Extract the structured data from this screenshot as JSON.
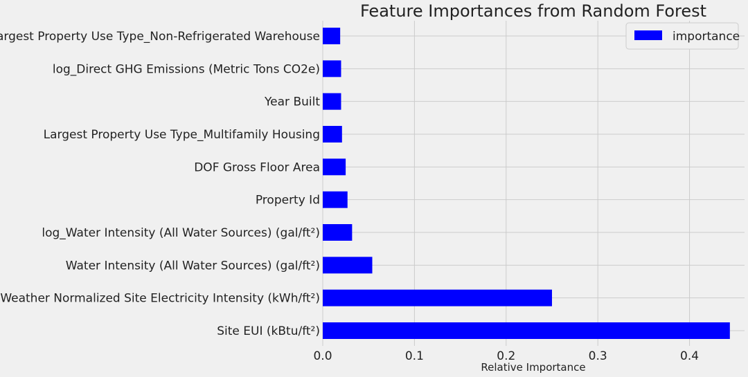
{
  "chart_data": {
    "type": "bar",
    "orientation": "horizontal",
    "title": "Feature Importances from Random Forest",
    "xlabel": "Relative Importance",
    "ylabel": "",
    "xlim": [
      0,
      0.46
    ],
    "xticks": [
      0.0,
      0.1,
      0.2,
      0.3,
      0.4
    ],
    "xtick_labels": [
      "0.0",
      "0.1",
      "0.2",
      "0.3",
      "0.4"
    ],
    "grid": true,
    "legend_position": "top-right",
    "bar_color": "#0000ff",
    "categories": [
      "Largest Property Use Type_Non-Refrigerated Warehouse",
      "log_Direct GHG Emissions (Metric Tons CO2e)",
      "Year Built",
      "Largest Property Use Type_Multifamily Housing",
      "DOF Gross Floor Area",
      "Property Id",
      "log_Water Intensity (All Water Sources) (gal/ft²)",
      "Water Intensity (All Water Sources) (gal/ft²)",
      "Weather Normalized Site Electricity Intensity (kWh/ft²)",
      "Site EUI (kBtu/ft²)"
    ],
    "series": [
      {
        "name": "importance",
        "values": [
          0.019,
          0.02,
          0.02,
          0.021,
          0.025,
          0.027,
          0.032,
          0.054,
          0.25,
          0.444
        ]
      }
    ]
  }
}
